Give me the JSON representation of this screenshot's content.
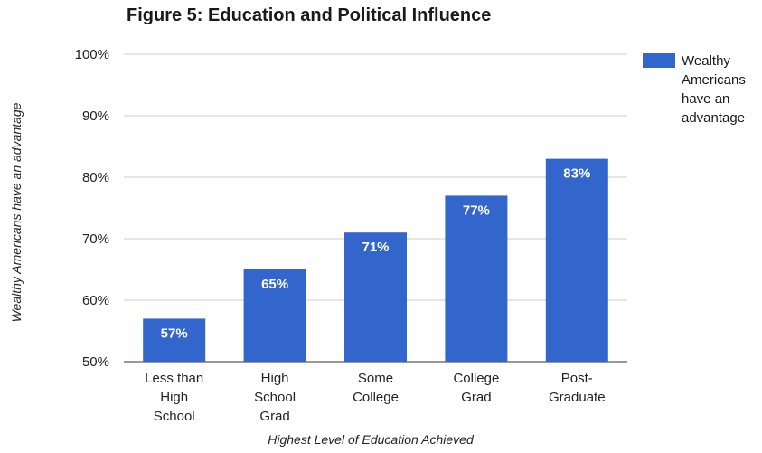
{
  "chart_data": {
    "type": "bar",
    "title": "Figure 5: Education and Political Influence",
    "xlabel": "Highest Level of Education Achieved",
    "ylabel": "Wealthy Americans have an advantage",
    "categories": [
      "Less than High School",
      "High School Grad",
      "Some College",
      "College Grad",
      "Post-Graduate"
    ],
    "category_lines": [
      [
        "Less than",
        "High",
        "School"
      ],
      [
        "High",
        "School",
        "Grad"
      ],
      [
        "Some",
        "College"
      ],
      [
        "College",
        "Grad"
      ],
      [
        "Post-",
        "Graduate"
      ]
    ],
    "series": [
      {
        "name": "Wealthy Americans have an advantage",
        "values": [
          57,
          65,
          71,
          77,
          83
        ],
        "labels": [
          "57%",
          "65%",
          "71%",
          "77%",
          "83%"
        ],
        "color": "#3366cc"
      }
    ],
    "legend_lines": [
      "Wealthy",
      "Americans",
      "have an",
      "advantage"
    ],
    "legend_position": "right",
    "ylim": [
      50,
      100
    ],
    "y_ticks": [
      50,
      60,
      70,
      80,
      90,
      100
    ],
    "y_tick_labels": [
      "50%",
      "60%",
      "70%",
      "80%",
      "90%",
      "100%"
    ],
    "grid": true,
    "colors": {
      "bar": "#3366cc",
      "grid": "#cccccc",
      "data_label": "#ffffff"
    }
  }
}
